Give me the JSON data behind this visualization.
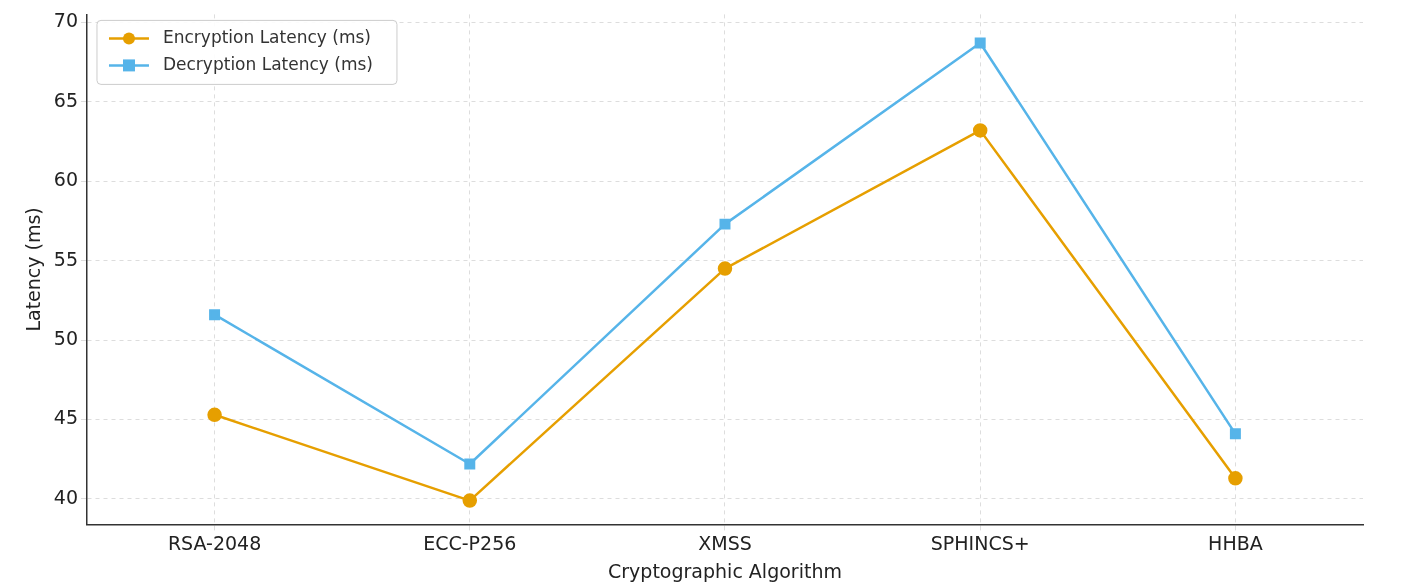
{
  "chart_data": {
    "type": "line",
    "xlabel": "Cryptographic Algorithm",
    "ylabel": "Latency (ms)",
    "categories": [
      "RSA-2048",
      "ECC-P256",
      "XMSS",
      "SPHINCS+",
      "HHBA"
    ],
    "series": [
      {
        "name": "Encryption Latency (ms)",
        "color": "#e69f00",
        "marker": "circle",
        "values": [
          45.3,
          39.9,
          54.5,
          63.2,
          41.3
        ]
      },
      {
        "name": "Decryption Latency (ms)",
        "color": "#56b4e9",
        "marker": "square",
        "values": [
          51.6,
          42.2,
          57.3,
          68.7,
          44.1
        ]
      }
    ],
    "ylim": [
      38.4,
      70.5
    ],
    "yticks": [
      40,
      45,
      50,
      55,
      60,
      65,
      70
    ],
    "grid": true,
    "legend": "top left",
    "line_style": "solid"
  }
}
